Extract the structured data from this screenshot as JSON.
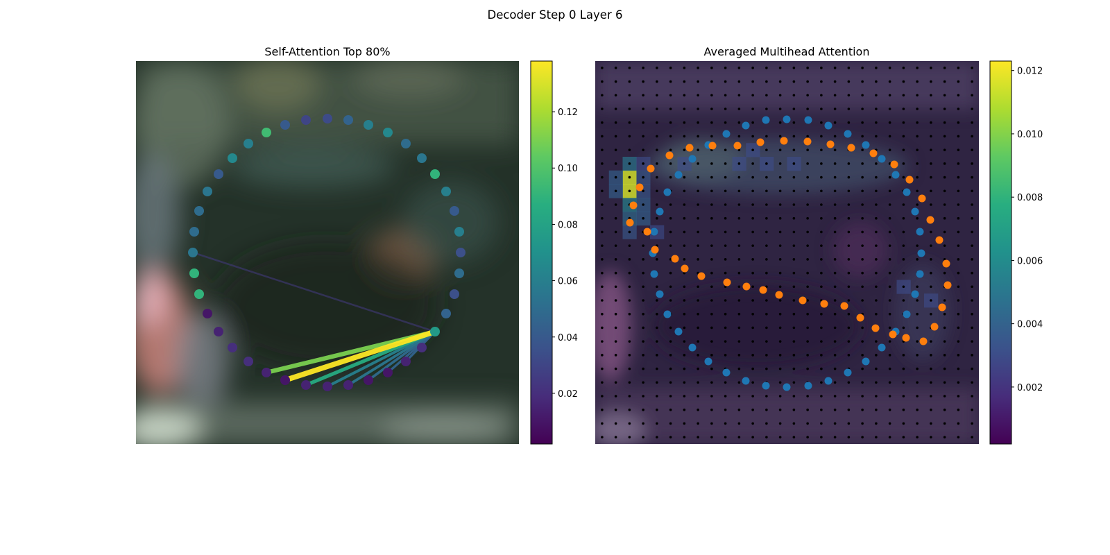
{
  "figure_title": "Decoder Step 0 Layer 6",
  "chart_data": [
    {
      "type": "scatter",
      "title": "Self-Attention Top 80%",
      "background": "blurred street-scene image",
      "colormap": "viridis",
      "colorbar": {
        "range": [
          0.002,
          0.138
        ],
        "ticks": [
          "0.02",
          "0.04",
          "0.06",
          "0.08",
          "0.10",
          "0.12"
        ]
      },
      "points": {
        "description": "ring of 40 query points colored by attention weight",
        "xy": [
          [
            472,
            171
          ],
          [
            502,
            173
          ],
          [
            531,
            180
          ],
          [
            559,
            191
          ],
          [
            585,
            207
          ],
          [
            608,
            228
          ],
          [
            627,
            251
          ],
          [
            643,
            276
          ],
          [
            655,
            304
          ],
          [
            662,
            334
          ],
          [
            664,
            364
          ],
          [
            662,
            394
          ],
          [
            655,
            424
          ],
          [
            643,
            452
          ],
          [
            627,
            478
          ],
          [
            608,
            501
          ],
          [
            585,
            521
          ],
          [
            559,
            537
          ],
          [
            531,
            548
          ],
          [
            502,
            555
          ],
          [
            472,
            557
          ],
          [
            441,
            555
          ],
          [
            411,
            548
          ],
          [
            384,
            537
          ],
          [
            358,
            521
          ],
          [
            335,
            501
          ],
          [
            315,
            478
          ],
          [
            299,
            452
          ],
          [
            287,
            424
          ],
          [
            280,
            394
          ],
          [
            278,
            364
          ],
          [
            280,
            334
          ],
          [
            287,
            304
          ],
          [
            299,
            276
          ],
          [
            315,
            251
          ],
          [
            335,
            228
          ],
          [
            358,
            207
          ],
          [
            384,
            191
          ],
          [
            411,
            180
          ],
          [
            441,
            173
          ]
        ],
        "weights": [
          0.033,
          0.045,
          0.06,
          0.065,
          0.05,
          0.055,
          0.09,
          0.06,
          0.04,
          0.06,
          0.035,
          0.05,
          0.035,
          0.045,
          0.075,
          0.02,
          0.015,
          0.01,
          0.01,
          0.015,
          0.015,
          0.015,
          0.01,
          0.015,
          0.02,
          0.02,
          0.015,
          0.01,
          0.09,
          0.09,
          0.055,
          0.05,
          0.05,
          0.055,
          0.04,
          0.065,
          0.06,
          0.095,
          0.04,
          0.03
        ]
      },
      "attention_lines": {
        "source_index": 14,
        "targets": [
          {
            "index": 22,
            "weight": 0.138
          },
          {
            "index": 23,
            "weight": 0.11
          },
          {
            "index": 21,
            "weight": 0.085
          },
          {
            "index": 20,
            "weight": 0.06
          },
          {
            "index": 19,
            "weight": 0.055
          },
          {
            "index": 18,
            "weight": 0.05
          },
          {
            "index": 17,
            "weight": 0.045
          },
          {
            "index": 16,
            "weight": 0.045
          },
          {
            "index": 30,
            "weight": 0.025
          }
        ]
      }
    },
    {
      "type": "heatmap",
      "title": "Averaged Multihead Attention",
      "colormap": "viridis",
      "colorbar": {
        "range": [
          0.0002,
          0.0123
        ],
        "ticks": [
          "0.002",
          "0.004",
          "0.006",
          "0.008",
          "0.010",
          "0.012"
        ]
      },
      "grid_size": 28,
      "hot_cells": [
        {
          "row": 8,
          "col": 2,
          "value": 0.0115
        },
        {
          "row": 9,
          "col": 2,
          "value": 0.0115
        },
        {
          "row": 7,
          "col": 2,
          "value": 0.005
        },
        {
          "row": 10,
          "col": 2,
          "value": 0.0055
        },
        {
          "row": 8,
          "col": 1,
          "value": 0.004
        },
        {
          "row": 9,
          "col": 1,
          "value": 0.004
        },
        {
          "row": 11,
          "col": 2,
          "value": 0.0045
        },
        {
          "row": 12,
          "col": 2,
          "value": 0.0035
        },
        {
          "row": 10,
          "col": 3,
          "value": 0.004
        },
        {
          "row": 11,
          "col": 3,
          "value": 0.004
        },
        {
          "row": 8,
          "col": 3,
          "value": 0.0035
        },
        {
          "row": 9,
          "col": 3,
          "value": 0.0035
        },
        {
          "row": 7,
          "col": 3,
          "value": 0.003
        },
        {
          "row": 12,
          "col": 4,
          "value": 0.003
        },
        {
          "row": 7,
          "col": 6,
          "value": 0.003
        },
        {
          "row": 7,
          "col": 10,
          "value": 0.003
        },
        {
          "row": 7,
          "col": 12,
          "value": 0.003
        },
        {
          "row": 7,
          "col": 14,
          "value": 0.003
        },
        {
          "row": 6,
          "col": 11,
          "value": 0.003
        },
        {
          "row": 16,
          "col": 22,
          "value": 0.003
        },
        {
          "row": 17,
          "col": 24,
          "value": 0.003
        }
      ],
      "series": [
        {
          "name": "blue ring",
          "color": "#1f77b4",
          "xy": [
            [
              1134,
              172
            ],
            [
              1165,
              173
            ],
            [
              1194,
              181
            ],
            [
              1222,
              193
            ],
            [
              1248,
              209
            ],
            [
              1271,
              229
            ],
            [
              1291,
              252
            ],
            [
              1307,
              277
            ],
            [
              1319,
              305
            ],
            [
              1326,
              334
            ],
            [
              1328,
              365
            ],
            [
              1326,
              395
            ],
            [
              1319,
              424
            ],
            [
              1307,
              453
            ],
            [
              1291,
              478
            ],
            [
              1271,
              501
            ],
            [
              1248,
              521
            ],
            [
              1222,
              537
            ],
            [
              1194,
              549
            ],
            [
              1165,
              556
            ],
            [
              1134,
              558
            ],
            [
              1104,
              556
            ],
            [
              1075,
              549
            ],
            [
              1047,
              537
            ],
            [
              1021,
              521
            ],
            [
              998,
              501
            ],
            [
              978,
              478
            ],
            [
              962,
              453
            ],
            [
              951,
              424
            ],
            [
              943,
              395
            ],
            [
              941,
              365
            ],
            [
              943,
              334
            ],
            [
              951,
              305
            ],
            [
              962,
              277
            ],
            [
              978,
              252
            ],
            [
              998,
              229
            ],
            [
              1021,
              209
            ],
            [
              1047,
              193
            ],
            [
              1075,
              181
            ],
            [
              1104,
              173
            ]
          ]
        },
        {
          "name": "orange ring",
          "color": "#ff7f0e",
          "xy": [
            [
              908,
              321
            ],
            [
              913,
              296
            ],
            [
              922,
              270
            ],
            [
              938,
              243
            ],
            [
              965,
              224
            ],
            [
              994,
              213
            ],
            [
              1027,
              210
            ],
            [
              1063,
              210
            ],
            [
              1096,
              205
            ],
            [
              1130,
              203
            ],
            [
              1164,
              204
            ],
            [
              1197,
              208
            ],
            [
              1227,
              213
            ],
            [
              1259,
              221
            ],
            [
              1289,
              237
            ],
            [
              1311,
              259
            ],
            [
              1329,
              286
            ],
            [
              1341,
              317
            ],
            [
              1354,
              346
            ],
            [
              1364,
              380
            ],
            [
              1366,
              411
            ],
            [
              1358,
              443
            ],
            [
              1347,
              471
            ],
            [
              1331,
              492
            ],
            [
              1306,
              487
            ],
            [
              1287,
              482
            ],
            [
              1262,
              473
            ],
            [
              1240,
              458
            ],
            [
              1217,
              441
            ],
            [
              1188,
              438
            ],
            [
              1157,
              433
            ],
            [
              1123,
              425
            ],
            [
              1100,
              418
            ],
            [
              1076,
              413
            ],
            [
              1048,
              407
            ],
            [
              1011,
              398
            ],
            [
              987,
              387
            ],
            [
              973,
              373
            ],
            [
              944,
              360
            ],
            [
              933,
              334
            ]
          ]
        }
      ]
    }
  ]
}
